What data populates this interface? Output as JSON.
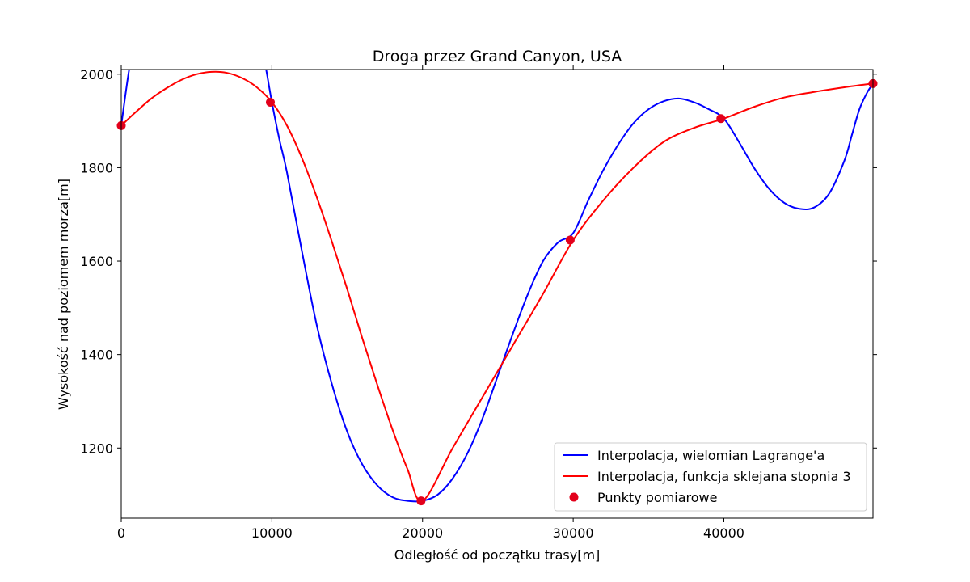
{
  "chart_data": {
    "type": "line",
    "title": "Droga przez Grand Canyon, USA",
    "xlabel": "Odległość od początku trasy[m]",
    "ylabel": "Wysokość nad poziomem morza[m]",
    "xlim": [
      0,
      49900
    ],
    "ylim": [
      1050,
      2010
    ],
    "xticks": [
      0,
      10000,
      20000,
      30000,
      40000
    ],
    "yticks": [
      1200,
      1400,
      1600,
      1800,
      2000
    ],
    "grid": false,
    "legend_position": "lower-right",
    "series": [
      {
        "name": "Interpolacja, wielomian Lagrange'a",
        "color": "#0000ff",
        "kind": "line",
        "x": [
          0,
          500,
          1000,
          1500,
          8500,
          9000,
          9500,
          10000,
          10500,
          11000,
          12000,
          13000,
          14000,
          15000,
          16000,
          17000,
          18000,
          19000,
          20000,
          21000,
          22000,
          23000,
          24000,
          25000,
          26000,
          27000,
          28000,
          29000,
          30000,
          31000,
          32000,
          33000,
          34000,
          35000,
          36000,
          37000,
          38000,
          39000,
          40000,
          41000,
          42000,
          43000,
          44000,
          45000,
          46000,
          47000,
          48000,
          48500,
          49000,
          49500,
          49900
        ],
        "y": [
          1890,
          2005,
          2090,
          2160,
          2140,
          2090,
          2030,
          1940,
          1860,
          1790,
          1620,
          1460,
          1335,
          1235,
          1165,
          1120,
          1095,
          1087,
          1087,
          1100,
          1135,
          1190,
          1265,
          1355,
          1445,
          1530,
          1600,
          1640,
          1660,
          1730,
          1795,
          1850,
          1895,
          1925,
          1942,
          1948,
          1940,
          1925,
          1905,
          1855,
          1800,
          1755,
          1725,
          1712,
          1715,
          1745,
          1815,
          1870,
          1925,
          1960,
          1980
        ]
      },
      {
        "name": "Interpolacja, funkcja sklejana stopnia 3",
        "color": "#ff0000",
        "kind": "line",
        "x": [
          0,
          1000,
          2000,
          3000,
          4000,
          5000,
          6000,
          7000,
          8000,
          9000,
          10000,
          11000,
          12000,
          13000,
          14000,
          15000,
          16000,
          17000,
          18000,
          19000,
          20000,
          22000,
          24000,
          26000,
          28000,
          30000,
          32000,
          34000,
          36000,
          38000,
          40000,
          42000,
          44000,
          46000,
          48000,
          49900
        ],
        "y": [
          1890,
          1920,
          1948,
          1970,
          1988,
          2000,
          2005,
          2003,
          1992,
          1972,
          1940,
          1890,
          1820,
          1735,
          1640,
          1540,
          1435,
          1335,
          1240,
          1155,
          1087,
          1200,
          1310,
          1420,
          1530,
          1645,
          1730,
          1800,
          1855,
          1885,
          1905,
          1930,
          1950,
          1962,
          1972,
          1980
        ]
      },
      {
        "name": "Punkty pomiarowe",
        "color": "#e3001b",
        "kind": "scatter",
        "x": [
          0,
          9900,
          19900,
          29800,
          39800,
          49900
        ],
        "y": [
          1890,
          1940,
          1087,
          1645,
          1905,
          1980
        ]
      }
    ]
  }
}
